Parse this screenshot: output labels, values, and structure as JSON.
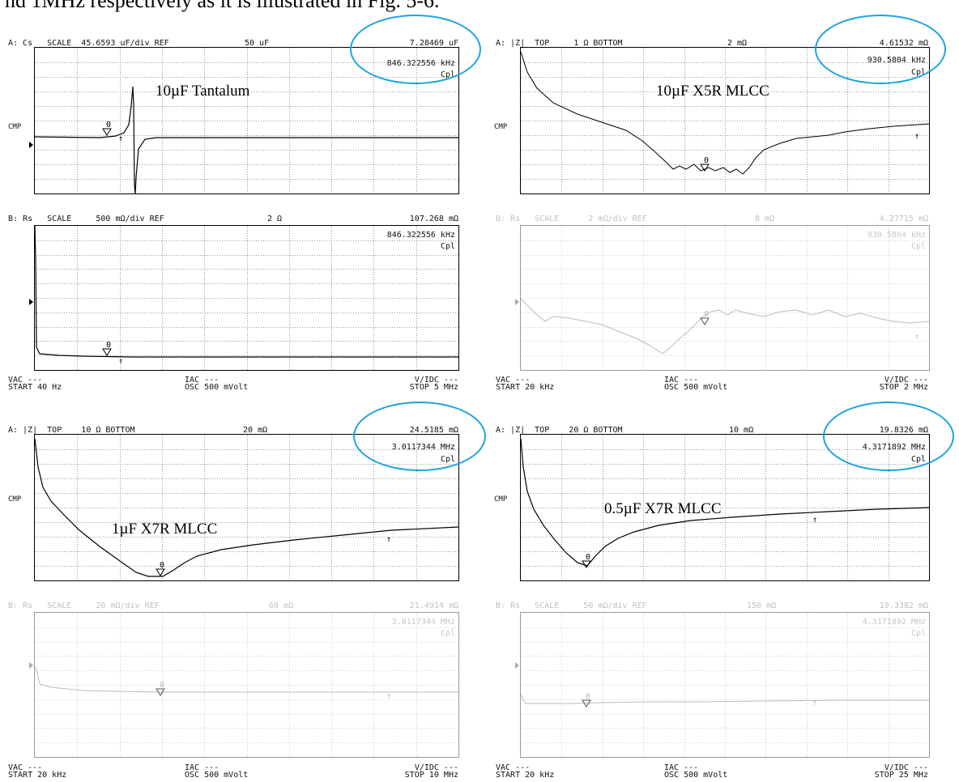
{
  "caption": "nd 1MHz respectively as it is illustrated in Fig. 5-6.",
  "panels": [
    {
      "id": "tl",
      "top": {
        "hdr_l": "A: Cs   SCALE  45.6593 uF/div REF",
        "hdr_m": "50 uF",
        "hdr_r": "7.28469 uF",
        "freq": "846.322556 kHz",
        "mode": "Cpl",
        "cmp": "CMP",
        "label": "10µF Tantalum",
        "marker": "0"
      },
      "bottom": {
        "hdr_l": "B: Rs   SCALE     500 mΩ/div REF",
        "hdr_m": "2 Ω",
        "hdr_r": "107.268 mΩ",
        "freq": "846.322556 kHz",
        "mode": "Cpl",
        "marker": "0"
      },
      "foot": {
        "l1": "VAC ---",
        "l2": "START 40 Hz",
        "m1": "IAC ---",
        "m2": "OSC 500 mVolt",
        "r1": "V/IDC ---",
        "r2": "STOP 5 MHz"
      }
    },
    {
      "id": "tr",
      "top": {
        "hdr_l": "A: |Z|  TOP     1 Ω BOTTOM",
        "hdr_m": "2 mΩ",
        "hdr_r": "4.61532 mΩ",
        "freq": "930.5804 kHz",
        "mode": "Cpl",
        "cmp": "CMP",
        "label": "10µF X5R MLCC",
        "marker": "0"
      },
      "bottom": {
        "hdr_l": "B: Rs   SCALE      2 mΩ/div REF",
        "hdr_m": "8 mΩ",
        "hdr_r": "4.27715 mΩ",
        "freq": "930.5804 kHz",
        "mode": "Cpl",
        "marker": "0"
      },
      "foot": {
        "l1": "VAC ---",
        "l2": "START 20 kHz",
        "m1": "IAC ---",
        "m2": "OSC 500 mVolt",
        "r1": "V/IDC ---",
        "r2": "STOP 2 MHz"
      }
    },
    {
      "id": "bl",
      "top": {
        "hdr_l": "A: |Z|  TOP    10 Ω BOTTOM",
        "hdr_m": "20 mΩ",
        "hdr_r": "24.5185 mΩ",
        "freq": "3.0117344 MHz",
        "mode": "Cpl",
        "cmp": "CMP",
        "label": "1µF X7R MLCC",
        "marker": "0"
      },
      "bottom": {
        "hdr_l": "B: Rs   SCALE     20 mΩ/div REF",
        "hdr_m": "60 mΩ",
        "hdr_r": "21.4914 mΩ",
        "freq": "3.0117344 MHz",
        "mode": "Cpl",
        "marker": "0"
      },
      "foot": {
        "l1": "VAC ---",
        "l2": "START 20 kHz",
        "m1": "IAC ---",
        "m2": "OSC 500 mVolt",
        "r1": "V/IDC ---",
        "r2": "STOP 10 MHz"
      }
    },
    {
      "id": "br",
      "top": {
        "hdr_l": "A: |Z|  TOP    20 Ω BOTTOM",
        "hdr_m": "10 mΩ",
        "hdr_r": "19.8326 mΩ",
        "freq": "4.3171892 MHz",
        "mode": "Cpl",
        "cmp": "CMP",
        "label": "0.5µF X7R MLCC",
        "marker": "0"
      },
      "bottom": {
        "hdr_l": "B: Rs   SCALE     50 mΩ/div REF",
        "hdr_m": "150 mΩ",
        "hdr_r": "19.3382 mΩ",
        "freq": "4.3171892 MHz",
        "mode": "Cpl",
        "marker": "0"
      },
      "foot": {
        "l1": "VAC ---",
        "l2": "START 20 kHz",
        "m1": "IAC ---",
        "m2": "OSC 500 mVolt",
        "r1": "V/IDC ---",
        "r2": "STOP 25 MHz"
      }
    }
  ],
  "chart_data": [
    {
      "type": "line",
      "title": "10µF Tantalum",
      "ylabel": "Cs",
      "x_range": [
        "40 Hz",
        "5 MHz"
      ],
      "series": [
        {
          "name": "Cs",
          "shape": "flat with sharp resonance spike near 846 kHz"
        }
      ],
      "marker": {
        "x": "846.322556 kHz",
        "y": "7.28469 uF"
      },
      "grid": true
    },
    {
      "type": "line",
      "title": "10µF X5R MLCC",
      "ylabel": "|Z|",
      "x_range": [
        "20 kHz",
        "2 MHz"
      ],
      "series": [
        {
          "name": "|Z|",
          "shape": "decreasing to minimum near 930 kHz then rising"
        }
      ],
      "marker": {
        "x": "930.5804 kHz",
        "y": "4.61532 mΩ"
      },
      "grid": true
    },
    {
      "type": "line",
      "title": "1µF X7R MLCC",
      "ylabel": "|Z|",
      "x_range": [
        "20 kHz",
        "10 MHz"
      ],
      "series": [
        {
          "name": "|Z|",
          "shape": "decreasing to minimum near 3 MHz then rising"
        }
      ],
      "marker": {
        "x": "3.0117344 MHz",
        "y": "24.5185 mΩ"
      },
      "grid": true
    },
    {
      "type": "line",
      "title": "0.5µF X7R MLCC",
      "ylabel": "|Z|",
      "x_range": [
        "20 kHz",
        "25 MHz"
      ],
      "series": [
        {
          "name": "|Z|",
          "shape": "decreasing to minimum near 4.3 MHz then rising"
        }
      ],
      "marker": {
        "x": "4.3171892 MHz",
        "y": "19.8326 mΩ"
      },
      "grid": true
    }
  ]
}
